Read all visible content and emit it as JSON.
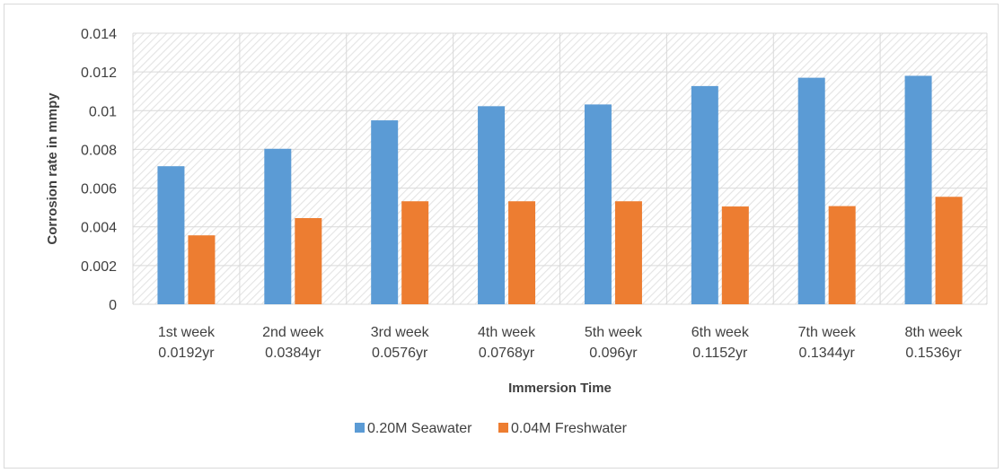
{
  "chart_data": {
    "type": "bar",
    "title": "",
    "xlabel": "Immersion Time",
    "ylabel": "Corrosion rate in mmpy",
    "ylim": [
      0,
      0.014
    ],
    "yticks": [
      "0",
      "0.002",
      "0.004",
      "0.006",
      "0.008",
      "0.01",
      "0.012",
      "0.014"
    ],
    "categories": [
      [
        "1st week",
        "0.0192yr"
      ],
      [
        "2nd week",
        "0.0384yr"
      ],
      [
        "3rd week",
        "0.0576yr"
      ],
      [
        "4th week",
        "0.0768yr"
      ],
      [
        "5th week",
        "0.096yr"
      ],
      [
        "6th week",
        "0.1152yr"
      ],
      [
        "7th week",
        "0.1344yr"
      ],
      [
        "8th week",
        "0.1536yr"
      ]
    ],
    "series": [
      {
        "name": "0.20M Seawater",
        "color": "#5b9bd5",
        "values": [
          0.00713,
          0.00803,
          0.0095,
          0.01023,
          0.01032,
          0.01127,
          0.0117,
          0.0118
        ]
      },
      {
        "name": "0.04M Freshwater",
        "color": "#ed7d31",
        "values": [
          0.00356,
          0.00445,
          0.00532,
          0.00532,
          0.00532,
          0.00505,
          0.00507,
          0.00555
        ]
      }
    ],
    "grid": true,
    "plot_background": "hatched",
    "legend_position": "bottom"
  }
}
